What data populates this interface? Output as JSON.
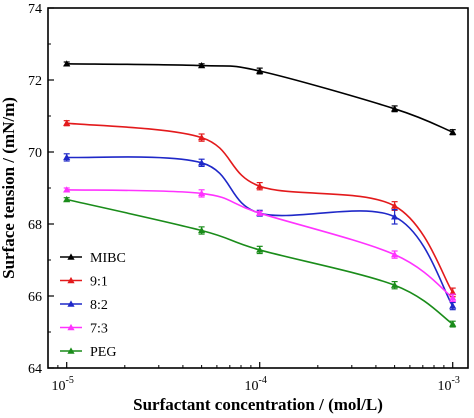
{
  "chart_data": {
    "type": "line",
    "xlabel": "Surfactant concentration / (mol/L)",
    "ylabel": "Surface tension / (mN/m)",
    "x_scale": "log",
    "xlim": [
      8e-06,
      0.0012
    ],
    "ylim": [
      64,
      74
    ],
    "x_ticks": [
      {
        "value": 1e-05,
        "base": "10",
        "exp": "-5"
      },
      {
        "value": 0.0001,
        "base": "10",
        "exp": "-4"
      },
      {
        "value": 0.001,
        "base": "10",
        "exp": "-3"
      }
    ],
    "y_ticks": [
      64,
      66,
      68,
      70,
      72,
      74
    ],
    "grid": false,
    "legend_position": "bottom-left",
    "x": [
      1e-05,
      5e-05,
      0.0001,
      0.0005,
      0.001
    ],
    "series": [
      {
        "name": "MIBC",
        "color": "#000000",
        "values": [
          72.45,
          72.4,
          72.25,
          71.2,
          70.55
        ],
        "errors": [
          0.05,
          0.05,
          0.08,
          0.08,
          0.07
        ]
      },
      {
        "name": "9:1",
        "color": "#e31a1c",
        "values": [
          70.8,
          70.4,
          69.05,
          68.5,
          66.1
        ],
        "errors": [
          0.07,
          0.1,
          0.1,
          0.12,
          0.12
        ]
      },
      {
        "name": "8:2",
        "color": "#1f28c8",
        "values": [
          69.85,
          69.7,
          68.3,
          68.2,
          65.72
        ],
        "errors": [
          0.1,
          0.1,
          0.08,
          0.2,
          0.1
        ]
      },
      {
        "name": "7:3",
        "color": "#ff33ff",
        "values": [
          68.95,
          68.85,
          68.3,
          67.15,
          65.95
        ],
        "errors": [
          0.05,
          0.1,
          0.05,
          0.1,
          0.1
        ]
      },
      {
        "name": "PEG",
        "color": "#1a8c1a",
        "values": [
          68.68,
          67.82,
          67.28,
          66.3,
          65.22
        ],
        "errors": [
          0.05,
          0.1,
          0.1,
          0.1,
          0.08
        ]
      }
    ]
  }
}
